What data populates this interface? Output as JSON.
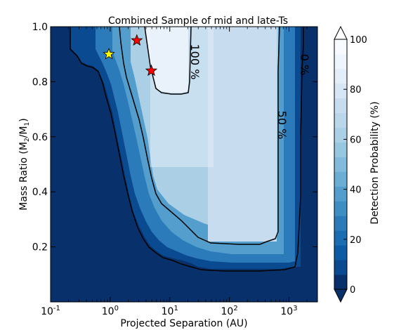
{
  "chart_data": {
    "type": "heatmap",
    "title": "Combined Sample of mid and late-Ts",
    "xlabel": "Projected Separation (AU)",
    "ylabel": "Mass Ratio (M",
    "ylabel_sub1": "2",
    "ylabel_mid": "/M",
    "ylabel_sub2": "1",
    "ylabel_end": ")",
    "x_scale": "log",
    "xlim": [
      0.1,
      3000
    ],
    "ylim": [
      0.0,
      1.0
    ],
    "x_ticks": [
      {
        "value": 0.1,
        "base": "10",
        "exp": "-1"
      },
      {
        "value": 1,
        "base": "10",
        "exp": "0"
      },
      {
        "value": 10,
        "base": "10",
        "exp": "1"
      },
      {
        "value": 100,
        "base": "10",
        "exp": "2"
      },
      {
        "value": 1000,
        "base": "10",
        "exp": "3"
      }
    ],
    "y_ticks": [
      {
        "value": 0.2,
        "label": "0.2"
      },
      {
        "value": 0.4,
        "label": "0.4"
      },
      {
        "value": 0.6,
        "label": "0.6"
      },
      {
        "value": 0.8,
        "label": "0.8"
      },
      {
        "value": 1.0,
        "label": "1.0"
      }
    ],
    "colorbar": {
      "label": "Detection Probability (%)",
      "range": [
        0,
        100
      ],
      "levels": [
        0,
        6.25,
        12.5,
        18.75,
        25,
        31.25,
        37.5,
        43.75,
        50,
        56.25,
        62.5,
        68.75,
        75,
        81.25,
        87.5,
        93.75,
        100
      ],
      "ticks": [
        {
          "value": 0,
          "label": "0"
        },
        {
          "value": 20,
          "label": "20"
        },
        {
          "value": 40,
          "label": "40"
        },
        {
          "value": 60,
          "label": "60"
        },
        {
          "value": 80,
          "label": "80"
        },
        {
          "value": 100,
          "label": "100"
        }
      ],
      "colors": [
        "#08306b",
        "#0a4a90",
        "#0c5ca5",
        "#1a6db1",
        "#2b7bba",
        "#3e8ec4",
        "#539ecd",
        "#6aaed6",
        "#81badb",
        "#97c6df",
        "#abd0e6",
        "#bad6eb",
        "#c8dcf0",
        "#d6e6f4",
        "#e3eef8",
        "#eef5fc",
        "#f7fbff"
      ]
    },
    "contours": [
      {
        "level": 0,
        "label": "0 %"
      },
      {
        "level": 50,
        "label": "50 %"
      },
      {
        "level": 100,
        "label": "100 %"
      }
    ],
    "markers": [
      {
        "type": "star",
        "color": "#ffff00",
        "x": 0.95,
        "y": 0.9
      },
      {
        "type": "star",
        "color": "#ff0000",
        "x": 2.8,
        "y": 0.95
      },
      {
        "type": "star",
        "color": "#ff0000",
        "x": 4.9,
        "y": 0.84
      }
    ]
  }
}
